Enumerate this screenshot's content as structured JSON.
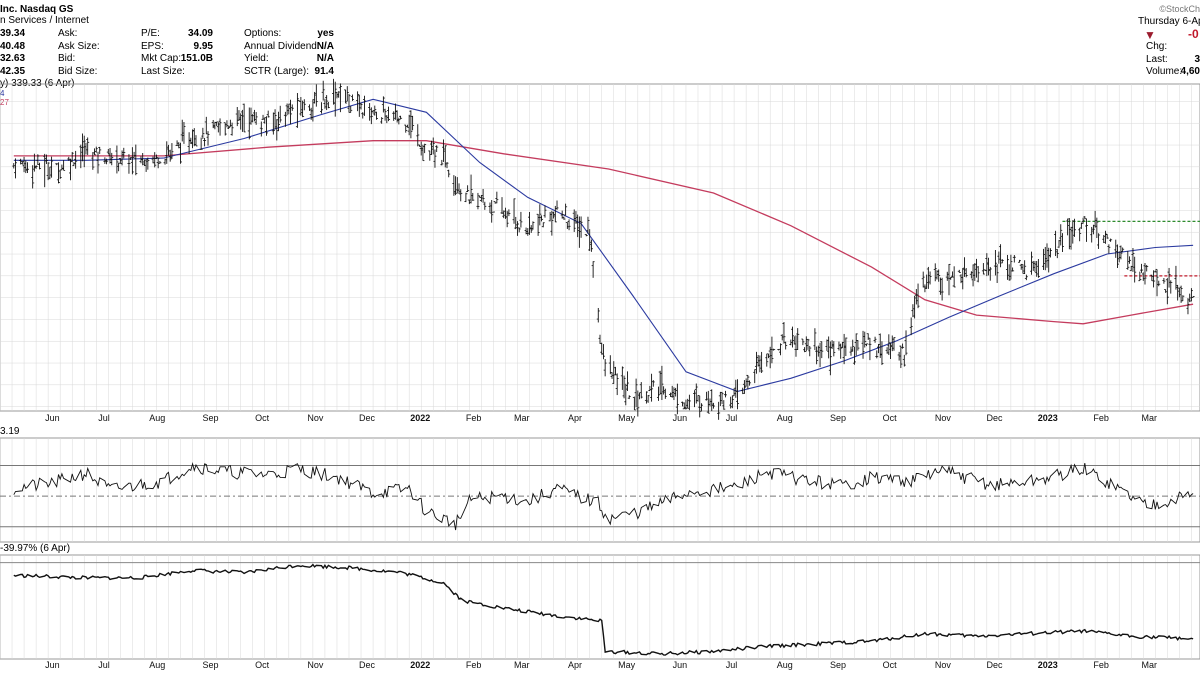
{
  "header": {
    "title": "Inc. Nasdaq GS",
    "subtitle": "n Services / Internet",
    "watermark": "©StockCh",
    "date_line": "Thursday 6-Ap",
    "change_arrow_color": "#9b1c2e",
    "change_value": "-0",
    "col1": [
      "39.34",
      "40.48",
      "32.63",
      "42.35"
    ],
    "col2_labels": [
      "Ask:",
      "Ask Size:",
      "Bid:",
      "Bid Size:"
    ],
    "col3_labels": [
      "P/E:",
      "EPS:",
      "Mkt Cap:",
      "Last Size:"
    ],
    "col3_values": [
      "34.09",
      "9.95",
      "151.0B",
      ""
    ],
    "col4_labels": [
      "Options:",
      "Annual Dividend:",
      "Yield:",
      "SCTR (Large):"
    ],
    "col4_values": [
      "yes",
      "N/A",
      "N/A",
      "91.4"
    ],
    "right_labels": [
      "Chg:",
      "Last:",
      "Volume:"
    ],
    "right_values": [
      "",
      "3",
      "4,60"
    ]
  },
  "legend": {
    "price": "y) 339.33 (6 Apr)",
    "ma_blue_tag": "4",
    "ma_red_tag": "27",
    "rsi": "3.19",
    "relative": "-39.97% (6 Apr)"
  },
  "colors": {
    "ma50": "#2b3aa0",
    "ma200": "#c43c5e",
    "resistance": "#2e8b2e",
    "support": "#c0182a",
    "overbought_fill": "#4f7f48",
    "oversold_fill": "#8b4a48",
    "grid": "#d8d8d8"
  },
  "x_axis": {
    "months": [
      "Jun",
      "Jul",
      "Aug",
      "Sep",
      "Oct",
      "Nov",
      "Dec",
      "2022",
      "Feb",
      "Mar",
      "Apr",
      "May",
      "Jun",
      "Jul",
      "Aug",
      "Sep",
      "Oct",
      "Nov",
      "Dec",
      "2023",
      "Feb",
      "Mar"
    ]
  },
  "chart_data": [
    {
      "type": "ohlc",
      "series": [
        {
          "name": "Price",
          "values": [
            {
              "x": "2021-05-20",
              "y": 401
            },
            {
              "x": "2021-06-01",
              "y": 401
            },
            {
              "x": "2021-06-15",
              "y": 399
            },
            {
              "x": "2021-07-01",
              "y": 408
            },
            {
              "x": "2021-07-15",
              "y": 404
            },
            {
              "x": "2021-08-01",
              "y": 403
            },
            {
              "x": "2021-08-15",
              "y": 405
            },
            {
              "x": "2021-09-01",
              "y": 414
            },
            {
              "x": "2021-09-15",
              "y": 417
            },
            {
              "x": "2021-10-01",
              "y": 423
            },
            {
              "x": "2021-10-15",
              "y": 420
            },
            {
              "x": "2021-11-01",
              "y": 427
            },
            {
              "x": "2021-11-15",
              "y": 430
            },
            {
              "x": "2021-11-25",
              "y": 434
            },
            {
              "x": "2021-12-05",
              "y": 428
            },
            {
              "x": "2021-12-20",
              "y": 424
            },
            {
              "x": "2022-01-05",
              "y": 421
            },
            {
              "x": "2022-01-15",
              "y": 406
            },
            {
              "x": "2022-01-25",
              "y": 405
            },
            {
              "x": "2022-02-03",
              "y": 392
            },
            {
              "x": "2022-02-05",
              "y": 387
            },
            {
              "x": "2022-02-15",
              "y": 385
            },
            {
              "x": "2022-03-01",
              "y": 379
            },
            {
              "x": "2022-03-15",
              "y": 371
            },
            {
              "x": "2022-04-01",
              "y": 379
            },
            {
              "x": "2022-04-20",
              "y": 369
            },
            {
              "x": "2022-04-28",
              "y": 310
            },
            {
              "x": "2022-05-15",
              "y": 294
            },
            {
              "x": "2022-06-01",
              "y": 299
            },
            {
              "x": "2022-06-15",
              "y": 292
            },
            {
              "x": "2022-07-01",
              "y": 293
            },
            {
              "x": "2022-07-15",
              "y": 294
            },
            {
              "x": "2022-08-01",
              "y": 314
            },
            {
              "x": "2022-08-15",
              "y": 322
            },
            {
              "x": "2022-09-01",
              "y": 316
            },
            {
              "x": "2022-09-15",
              "y": 317
            },
            {
              "x": "2022-10-01",
              "y": 319
            },
            {
              "x": "2022-10-20",
              "y": 315
            },
            {
              "x": "2022-10-28",
              "y": 342
            },
            {
              "x": "2022-11-05",
              "y": 352
            },
            {
              "x": "2022-11-15",
              "y": 348
            },
            {
              "x": "2022-12-01",
              "y": 354
            },
            {
              "x": "2022-12-15",
              "y": 356
            },
            {
              "x": "2023-01-01",
              "y": 352
            },
            {
              "x": "2023-01-15",
              "y": 361
            },
            {
              "x": "2023-02-01",
              "y": 375
            },
            {
              "x": "2023-02-15",
              "y": 367
            },
            {
              "x": "2023-03-01",
              "y": 355
            },
            {
              "x": "2023-03-15",
              "y": 349
            },
            {
              "x": "2023-04-06",
              "y": 339
            }
          ]
        },
        {
          "name": "MA50",
          "values": [
            {
              "x": "2021-05-20",
              "y": 403
            },
            {
              "x": "2021-07-01",
              "y": 403
            },
            {
              "x": "2021-08-15",
              "y": 404
            },
            {
              "x": "2021-10-01",
              "y": 413
            },
            {
              "x": "2021-11-15",
              "y": 424
            },
            {
              "x": "2021-12-15",
              "y": 431
            },
            {
              "x": "2022-01-15",
              "y": 425
            },
            {
              "x": "2022-02-15",
              "y": 402
            },
            {
              "x": "2022-03-15",
              "y": 386
            },
            {
              "x": "2022-04-15",
              "y": 374
            },
            {
              "x": "2022-05-15",
              "y": 341
            },
            {
              "x": "2022-06-15",
              "y": 306
            },
            {
              "x": "2022-07-15",
              "y": 297
            },
            {
              "x": "2022-08-15",
              "y": 303
            },
            {
              "x": "2022-09-15",
              "y": 311
            },
            {
              "x": "2022-10-15",
              "y": 320
            },
            {
              "x": "2022-11-15",
              "y": 331
            },
            {
              "x": "2022-12-15",
              "y": 341
            },
            {
              "x": "2023-01-15",
              "y": 351
            },
            {
              "x": "2023-02-15",
              "y": 360
            },
            {
              "x": "2023-03-15",
              "y": 363
            },
            {
              "x": "2023-04-06",
              "y": 364
            }
          ]
        },
        {
          "name": "MA200",
          "values": [
            {
              "x": "2021-05-20",
              "y": 405
            },
            {
              "x": "2021-08-15",
              "y": 405
            },
            {
              "x": "2021-10-15",
              "y": 409
            },
            {
              "x": "2021-12-15",
              "y": 412
            },
            {
              "x": "2022-01-15",
              "y": 412
            },
            {
              "x": "2022-03-01",
              "y": 406
            },
            {
              "x": "2022-05-01",
              "y": 399
            },
            {
              "x": "2022-07-01",
              "y": 388
            },
            {
              "x": "2022-08-15",
              "y": 373
            },
            {
              "x": "2022-10-01",
              "y": 354
            },
            {
              "x": "2022-11-01",
              "y": 339
            },
            {
              "x": "2022-12-01",
              "y": 332
            },
            {
              "x": "2023-01-15",
              "y": 329
            },
            {
              "x": "2023-02-01",
              "y": 328
            },
            {
              "x": "2023-03-01",
              "y": 332
            },
            {
              "x": "2023-04-06",
              "y": 337
            }
          ]
        }
      ],
      "levels": [
        {
          "name": "resistance",
          "y": 375,
          "from": "2023-01-20"
        },
        {
          "name": "support",
          "y": 350,
          "from": "2023-02-25"
        }
      ]
    },
    {
      "type": "line",
      "series": [
        {
          "name": "RSI(14)",
          "values": [
            {
              "x": "2021-05-20",
              "y": 55
            },
            {
              "x": "2021-06-10",
              "y": 58
            },
            {
              "x": "2021-07-01",
              "y": 65
            },
            {
              "x": "2021-07-15",
              "y": 54
            },
            {
              "x": "2021-08-15",
              "y": 60
            },
            {
              "x": "2021-09-01",
              "y": 70
            },
            {
              "x": "2021-09-20",
              "y": 66
            },
            {
              "x": "2021-10-15",
              "y": 64
            },
            {
              "x": "2021-11-01",
              "y": 68
            },
            {
              "x": "2021-11-25",
              "y": 62
            },
            {
              "x": "2021-12-15",
              "y": 52
            },
            {
              "x": "2022-01-05",
              "y": 55
            },
            {
              "x": "2022-01-15",
              "y": 40
            },
            {
              "x": "2022-02-01",
              "y": 32
            },
            {
              "x": "2022-02-10",
              "y": 48
            },
            {
              "x": "2022-03-01",
              "y": 50
            },
            {
              "x": "2022-03-15",
              "y": 46
            },
            {
              "x": "2022-04-01",
              "y": 55
            },
            {
              "x": "2022-04-25",
              "y": 45
            },
            {
              "x": "2022-05-01",
              "y": 35
            },
            {
              "x": "2022-05-20",
              "y": 40
            },
            {
              "x": "2022-06-15",
              "y": 52
            },
            {
              "x": "2022-07-15",
              "y": 56
            },
            {
              "x": "2022-08-01",
              "y": 66
            },
            {
              "x": "2022-08-25",
              "y": 60
            },
            {
              "x": "2022-09-15",
              "y": 57
            },
            {
              "x": "2022-10-01",
              "y": 62
            },
            {
              "x": "2022-10-25",
              "y": 60
            },
            {
              "x": "2022-11-10",
              "y": 67
            },
            {
              "x": "2022-12-10",
              "y": 57
            },
            {
              "x": "2023-01-05",
              "y": 60
            },
            {
              "x": "2023-02-01",
              "y": 68
            },
            {
              "x": "2023-02-20",
              "y": 56
            },
            {
              "x": "2023-03-10",
              "y": 44
            },
            {
              "x": "2023-03-20",
              "y": 47
            },
            {
              "x": "2023-04-06",
              "y": 51
            }
          ]
        }
      ],
      "levels": [
        70,
        50,
        30
      ]
    },
    {
      "type": "line",
      "series": [
        {
          "name": "Relative performance (%)",
          "values": [
            {
              "x": "2021-05-20",
              "y": -15
            },
            {
              "x": "2021-07-01",
              "y": -16
            },
            {
              "x": "2021-08-01",
              "y": -16
            },
            {
              "x": "2021-09-01",
              "y": -13
            },
            {
              "x": "2021-10-01",
              "y": -14
            },
            {
              "x": "2021-11-01",
              "y": -11
            },
            {
              "x": "2021-12-01",
              "y": -12
            },
            {
              "x": "2022-01-01",
              "y": -14
            },
            {
              "x": "2022-01-25",
              "y": -18
            },
            {
              "x": "2022-02-05",
              "y": -25
            },
            {
              "x": "2022-03-01",
              "y": -28
            },
            {
              "x": "2022-04-01",
              "y": -31
            },
            {
              "x": "2022-04-27",
              "y": -33
            },
            {
              "x": "2022-04-29",
              "y": -45
            },
            {
              "x": "2022-06-01",
              "y": -46
            },
            {
              "x": "2022-07-01",
              "y": -45
            },
            {
              "x": "2022-08-01",
              "y": -43
            },
            {
              "x": "2022-09-01",
              "y": -42
            },
            {
              "x": "2022-10-01",
              "y": -41
            },
            {
              "x": "2022-11-01",
              "y": -38
            },
            {
              "x": "2022-12-01",
              "y": -39
            },
            {
              "x": "2023-01-01",
              "y": -38
            },
            {
              "x": "2023-02-01",
              "y": -37
            },
            {
              "x": "2023-03-01",
              "y": -39
            },
            {
              "x": "2023-04-06",
              "y": -40
            }
          ]
        }
      ],
      "levels": [
        -10
      ]
    }
  ]
}
